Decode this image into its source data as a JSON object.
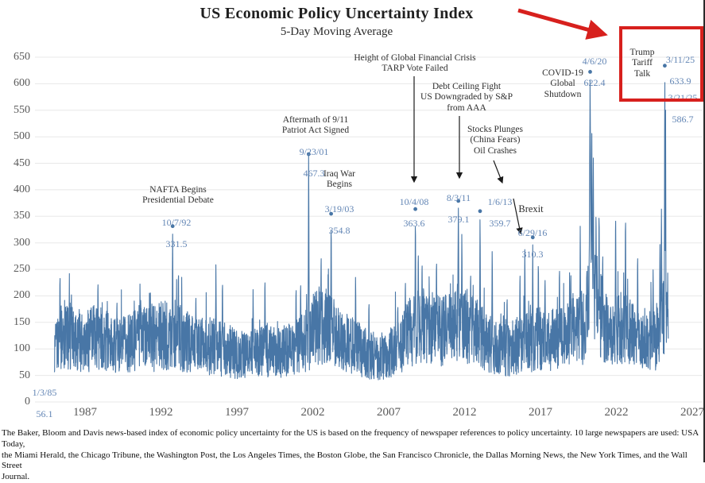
{
  "chart_data": {
    "type": "line",
    "title": "US Economic Policy Uncertainty Index",
    "subtitle": "5-Day Moving Average",
    "line_color": "#4876a6",
    "label_color": "#6386b5",
    "grid_color": "#e8e8e8",
    "highlight_color": "#d7201d",
    "x": {
      "ticks": [
        1987,
        1992,
        1997,
        2002,
        2007,
        2012,
        2017,
        2022,
        2027
      ],
      "min": 1984.6,
      "max": 2027.9
    },
    "y": {
      "ticks": [
        0,
        50,
        100,
        150,
        200,
        250,
        300,
        350,
        400,
        450,
        500,
        550,
        600,
        650
      ],
      "min": 0,
      "max": 650
    },
    "legend": "none",
    "grid": "horizontal",
    "envelope": [
      [
        1984.98,
        95,
        55
      ],
      [
        1985.6,
        130,
        80
      ],
      [
        1986.5,
        115,
        70
      ],
      [
        1987.9,
        125,
        80
      ],
      [
        1988.8,
        105,
        60
      ],
      [
        1990.0,
        110,
        65
      ],
      [
        1990.7,
        130,
        80
      ],
      [
        1991.5,
        120,
        75
      ],
      [
        1992.8,
        130,
        80
      ],
      [
        1993.6,
        115,
        70
      ],
      [
        1994.5,
        105,
        62
      ],
      [
        1995.6,
        105,
        65
      ],
      [
        1996.3,
        100,
        62
      ],
      [
        1997.2,
        85,
        52
      ],
      [
        1998.8,
        100,
        62
      ],
      [
        1999.6,
        92,
        55
      ],
      [
        2000.9,
        100,
        62
      ],
      [
        2001.6,
        120,
        75
      ],
      [
        2002.3,
        140,
        85
      ],
      [
        2003.2,
        135,
        80
      ],
      [
        2004.0,
        115,
        68
      ],
      [
        2005.0,
        100,
        60
      ],
      [
        2006.0,
        85,
        52
      ],
      [
        2007.0,
        90,
        55
      ],
      [
        2008.2,
        125,
        75
      ],
      [
        2008.9,
        150,
        90
      ],
      [
        2009.5,
        145,
        85
      ],
      [
        2010.3,
        135,
        80
      ],
      [
        2011.2,
        140,
        85
      ],
      [
        2011.8,
        155,
        92
      ],
      [
        2012.5,
        135,
        80
      ],
      [
        2013.1,
        125,
        75
      ],
      [
        2014.0,
        102,
        62
      ],
      [
        2015.0,
        100,
        60
      ],
      [
        2016.0,
        112,
        68
      ],
      [
        2016.9,
        118,
        72
      ],
      [
        2017.8,
        118,
        70
      ],
      [
        2018.6,
        125,
        75
      ],
      [
        2019.6,
        135,
        82
      ],
      [
        2020.1,
        150,
        88
      ],
      [
        2020.35,
        230,
        120
      ],
      [
        2020.7,
        190,
        105
      ],
      [
        2021.1,
        150,
        88
      ],
      [
        2021.7,
        120,
        70
      ],
      [
        2022.3,
        140,
        82
      ],
      [
        2023.0,
        130,
        75
      ],
      [
        2023.8,
        118,
        70
      ],
      [
        2024.5,
        115,
        68
      ],
      [
        2024.95,
        140,
        85
      ],
      [
        2025.42,
        180,
        95
      ]
    ],
    "peaks": [
      [
        1985.35,
        256
      ],
      [
        1986.1,
        222
      ],
      [
        1987.85,
        243
      ],
      [
        1989.1,
        205
      ],
      [
        1990.62,
        233
      ],
      [
        1991.3,
        226
      ],
      [
        1992.77,
        331.5
      ],
      [
        1993.15,
        262
      ],
      [
        1994.3,
        215
      ],
      [
        1995.62,
        271
      ],
      [
        1996.05,
        242
      ],
      [
        1998.07,
        222
      ],
      [
        1998.85,
        247
      ],
      [
        2000.9,
        231
      ],
      [
        2001.2,
        241
      ],
      [
        2001.73,
        467.3
      ],
      [
        2002.55,
        297
      ],
      [
        2003.21,
        354.8
      ],
      [
        2004.82,
        246
      ],
      [
        2005.7,
        202
      ],
      [
        2007.6,
        196
      ],
      [
        2008.1,
        246
      ],
      [
        2008.76,
        363.6
      ],
      [
        2008.95,
        303
      ],
      [
        2009.2,
        282
      ],
      [
        2010.15,
        286
      ],
      [
        2011.59,
        379.1,
        0.07
      ],
      [
        2011.82,
        331
      ],
      [
        2012.4,
        261
      ],
      [
        2013.02,
        359.7
      ],
      [
        2013.82,
        297
      ],
      [
        2014.8,
        212
      ],
      [
        2015.65,
        261
      ],
      [
        2015.97,
        301
      ],
      [
        2016.49,
        310.3
      ],
      [
        2016.86,
        281
      ],
      [
        2017.3,
        252
      ],
      [
        2018.25,
        271
      ],
      [
        2019.0,
        262
      ],
      [
        2019.62,
        347
      ],
      [
        2020.05,
        271
      ],
      [
        2020.27,
        622.4,
        0.1
      ],
      [
        2020.38,
        506,
        0.08
      ],
      [
        2020.48,
        460,
        0.07
      ],
      [
        2020.66,
        383
      ],
      [
        2020.86,
        381
      ],
      [
        2021.1,
        301
      ],
      [
        2021.95,
        375
      ],
      [
        2022.6,
        371
      ],
      [
        2023.4,
        297
      ],
      [
        2024.42,
        261
      ],
      [
        2024.87,
        311
      ],
      [
        2024.97,
        381
      ],
      [
        2025.19,
        633.9,
        0.05
      ],
      [
        2025.24,
        586.7,
        0.04
      ]
    ],
    "dots": [
      [
        1992.77,
        331.5
      ],
      [
        2001.73,
        467.3
      ],
      [
        2003.21,
        354.8
      ],
      [
        2008.76,
        363.6
      ],
      [
        2011.59,
        379.1
      ],
      [
        2013.02,
        359.7
      ],
      [
        2016.49,
        310.3
      ],
      [
        2020.27,
        622.4
      ],
      [
        2025.19,
        633.9
      ]
    ],
    "annotations": {
      "start": {
        "date": "1/3/85",
        "value": "56.1"
      },
      "nafta": {
        "label": "NAFTA Begins\nPresidential Debate",
        "date": "10/7/92",
        "value": "331.5"
      },
      "patriot": {
        "label": "Aftermath of 9/11\nPatriot Act Signed",
        "date": "9/23/01",
        "value": "467.3"
      },
      "iraq": {
        "label": "Iraq War\nBegins",
        "date": "3/19/03",
        "value": "354.8"
      },
      "tarp": {
        "label": "Height of Global Financial Crisis\nTARP Vote Failed",
        "date": "10/4/08",
        "value": "363.6"
      },
      "debt_ceiling": {
        "label": "Debt Ceiling Fight\nUS Downgraded by S&P\nfrom AAA",
        "date": "8/3/11",
        "value": "379.1"
      },
      "stocks": {
        "label": "Stocks Plunges\n(China Fears)\nOil Crashes",
        "date": "1/6/13",
        "value": "359.7"
      },
      "brexit": {
        "label": "Brexit",
        "date": "6/29/16",
        "value": "310.3"
      },
      "covid": {
        "label": "COVID-19\nGlobal\nShutdown",
        "date": "4/6/20",
        "value": "622.4"
      },
      "trump": {
        "label": "Trump\nTariff\nTalk",
        "date1": "3/11/25",
        "value1": "633.9",
        "date2": "3/21/25",
        "value2": "586.7"
      }
    }
  },
  "footer": {
    "text": "The Baker, Bloom and Davis news-based index of economic policy uncertainty for the US is based on the frequency of newspaper references to policy uncertainty. 10 large newspapers are used: USA Today,\nthe Miami Herald, the Chicago Tribune, the Washington Post, the Los Angeles Times, the Boston Globe, the San Francisco Chronicle, the Dallas Morning News, the New York Times, and the Wall Street\nJournal."
  }
}
